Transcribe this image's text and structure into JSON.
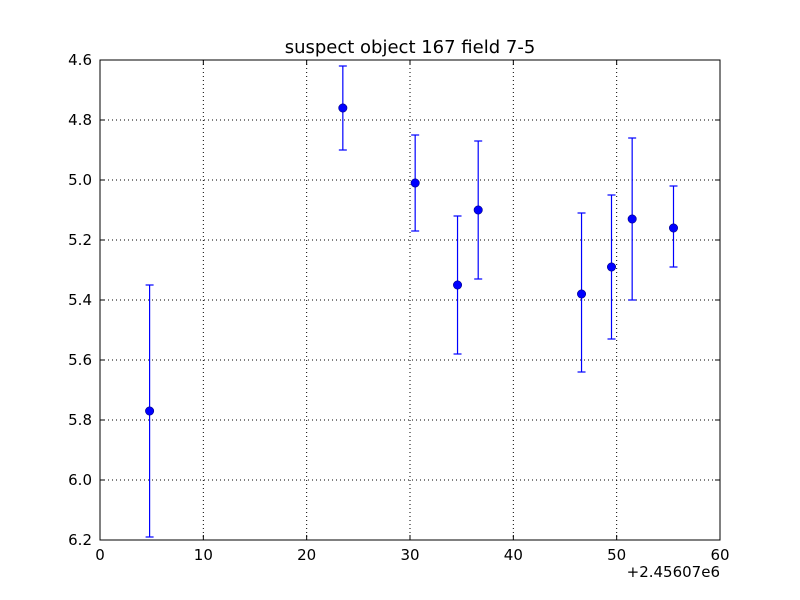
{
  "chart_data": {
    "type": "scatter",
    "title": "suspect object 167 field 7-5",
    "x_offset_label": "+2.45607e6",
    "xlim": [
      0,
      60
    ],
    "ylim": [
      6.2,
      4.6
    ],
    "y_inverted": true,
    "grid": true,
    "x_ticks": [
      0,
      10,
      20,
      30,
      40,
      50,
      60
    ],
    "x_tick_labels": [
      "0",
      "10",
      "20",
      "30",
      "40",
      "50",
      "60"
    ],
    "y_ticks": [
      4.6,
      4.8,
      5.0,
      5.2,
      5.4,
      5.6,
      5.8,
      6.0,
      6.2
    ],
    "y_tick_labels": [
      "4.6",
      "4.8",
      "5.0",
      "5.2",
      "5.4",
      "5.6",
      "5.8",
      "6.0",
      "6.2"
    ],
    "points": [
      {
        "x": 4.8,
        "y": 5.77,
        "ylo": 5.35,
        "yhi": 6.19
      },
      {
        "x": 23.5,
        "y": 4.76,
        "ylo": 4.62,
        "yhi": 4.9
      },
      {
        "x": 30.5,
        "y": 5.01,
        "ylo": 4.85,
        "yhi": 5.17
      },
      {
        "x": 34.6,
        "y": 5.35,
        "ylo": 5.12,
        "yhi": 5.58
      },
      {
        "x": 36.6,
        "y": 5.1,
        "ylo": 4.87,
        "yhi": 5.33
      },
      {
        "x": 46.6,
        "y": 5.38,
        "ylo": 5.11,
        "yhi": 5.64
      },
      {
        "x": 49.5,
        "y": 5.29,
        "ylo": 5.05,
        "yhi": 5.53
      },
      {
        "x": 51.5,
        "y": 5.13,
        "ylo": 4.86,
        "yhi": 5.4
      },
      {
        "x": 55.5,
        "y": 5.16,
        "ylo": 5.02,
        "yhi": 5.29
      }
    ]
  }
}
